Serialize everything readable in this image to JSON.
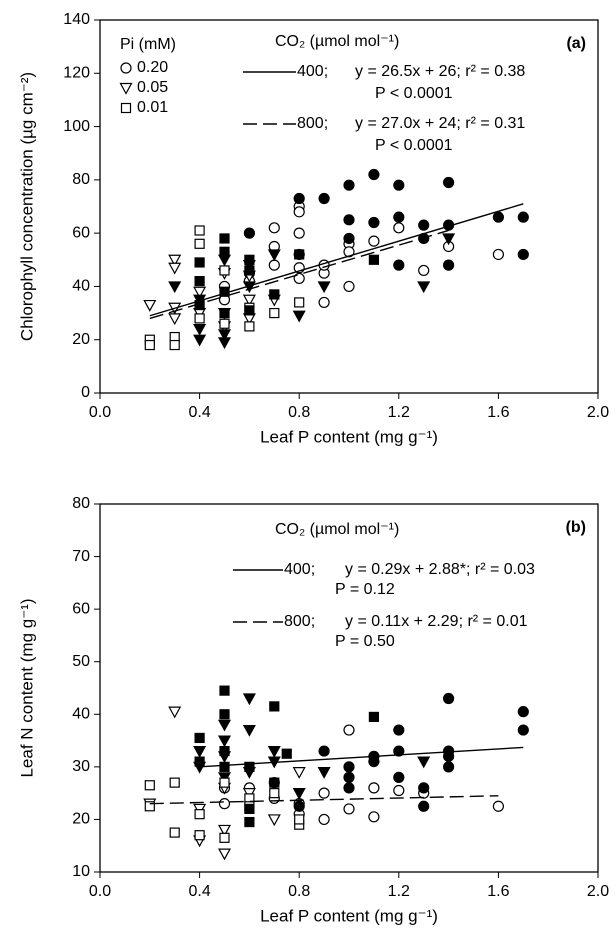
{
  "chart_data": [
    {
      "type": "scatter",
      "panel_label": "(a)",
      "y_label": "Chlorophyll concentration (µg cm⁻²)",
      "x_label": "Leaf P content (mg g⁻¹)",
      "xlim": [
        0,
        2
      ],
      "xticks": [
        {
          "value": 0,
          "label": "0.0"
        },
        0.4,
        0.8,
        1.2,
        1.6,
        {
          "value": 2,
          "label": "2.0"
        }
      ],
      "ylim": [
        0,
        140
      ],
      "yticks": [
        0,
        20,
        40,
        60,
        80,
        100,
        120,
        140
      ],
      "legend_title": "Pi (mM)",
      "fit_legend_title": "CO₂ (µmol mol⁻¹)",
      "series": [
        {
          "name": "0.20",
          "marker": "circle",
          "filled": false,
          "color": "#000000",
          "x": [
            0.5,
            0.5,
            0.6,
            0.6,
            0.7,
            0.7,
            0.8,
            0.8,
            0.8,
            0.8,
            0.8,
            0.8,
            0.9,
            0.9,
            0.9,
            1.0,
            1.0,
            1.0,
            1.1,
            1.2,
            1.3,
            1.4,
            1.6,
            0.7
          ],
          "values": [
            40,
            35,
            45,
            42,
            48,
            55,
            70,
            68,
            60,
            52,
            47,
            43,
            34,
            45,
            48,
            40,
            56,
            53,
            57,
            62,
            46,
            55,
            52,
            62
          ]
        },
        {
          "marker": "circle",
          "filled": true,
          "color": "#000000",
          "x": [
            0.8,
            0.9,
            1.0,
            1.1,
            1.2,
            1.4,
            1.0,
            1.1,
            1.2,
            1.3,
            1.4,
            1.6,
            1.7,
            1.7,
            1.4,
            1.2,
            1.3,
            0.6,
            1.0
          ],
          "values": [
            73,
            73,
            78,
            82,
            78,
            79,
            65,
            64,
            66,
            63,
            63,
            66,
            66,
            52,
            48,
            48,
            58,
            60,
            58
          ]
        },
        {
          "name": "0.05",
          "marker": "triangle",
          "filled": false,
          "color": "#000000",
          "x": [
            0.2,
            0.3,
            0.3,
            0.3,
            0.3,
            0.4,
            0.4,
            0.5,
            0.5,
            0.5,
            0.6,
            0.6,
            0.7,
            0.6
          ],
          "values": [
            33,
            50,
            47,
            28,
            32,
            38,
            30,
            45,
            30,
            25,
            44,
            35,
            35,
            28
          ]
        },
        {
          "marker": "triangle",
          "filled": true,
          "color": "#000000",
          "x": [
            0.3,
            0.4,
            0.4,
            0.4,
            0.5,
            0.5,
            0.5,
            0.6,
            0.6,
            0.7,
            0.8,
            0.9,
            1.3,
            1.4
          ],
          "values": [
            40,
            20,
            24,
            35,
            19,
            22,
            50,
            48,
            40,
            52,
            29,
            40,
            40,
            58
          ]
        },
        {
          "name": "0.01",
          "marker": "square",
          "filled": false,
          "color": "#000000",
          "x": [
            0.2,
            0.2,
            0.3,
            0.3,
            0.4,
            0.4,
            0.5,
            0.5,
            0.6,
            0.6,
            0.7,
            0.8,
            0.4
          ],
          "values": [
            20,
            18,
            21,
            18,
            61,
            56,
            46,
            26,
            25,
            32,
            30,
            34,
            28
          ]
        },
        {
          "marker": "square",
          "filled": true,
          "color": "#000000",
          "x": [
            0.4,
            0.4,
            0.4,
            0.5,
            0.5,
            0.5,
            0.5,
            0.6,
            0.6,
            0.7,
            0.8,
            1.1,
            0.6
          ],
          "values": [
            49,
            42,
            33,
            58,
            53,
            38,
            30,
            50,
            31,
            37,
            52,
            50,
            46
          ]
        }
      ],
      "fits": [
        {
          "label": "400;",
          "equation": "y = 26.5x + 26; r² = 0.38",
          "p_value": "P < 0.0001",
          "dash": false,
          "x": [
            0.2,
            1.7
          ],
          "values": [
            29,
            71
          ]
        },
        {
          "label": "800;",
          "equation": "y = 27.0x + 24; r² = 0.31",
          "p_value": "P < 0.0001",
          "dash": true,
          "x": [
            0.2,
            1.4
          ],
          "values": [
            28,
            61
          ]
        }
      ]
    },
    {
      "type": "scatter",
      "panel_label": "(b)",
      "y_label": "Leaf N content (mg g⁻¹)",
      "x_label": "Leaf P content (mg g⁻¹)",
      "xlim": [
        0,
        2
      ],
      "xticks": [
        {
          "value": 0,
          "label": "0.0"
        },
        0.4,
        0.8,
        1.2,
        1.6,
        {
          "value": 2,
          "label": "2.0"
        }
      ],
      "ylim": [
        10,
        80
      ],
      "yticks": [
        10,
        20,
        30,
        40,
        50,
        60,
        70,
        80
      ],
      "fit_legend_title": "CO₂ (µmol mol⁻¹)",
      "series": [
        {
          "marker": "circle",
          "filled": false,
          "color": "#000000",
          "x": [
            0.5,
            0.6,
            0.7,
            0.8,
            0.8,
            0.9,
            0.9,
            1.0,
            1.0,
            1.1,
            1.1,
            1.2,
            1.3,
            1.6,
            0.7,
            0.5
          ],
          "values": [
            26,
            26,
            24,
            21,
            23,
            20,
            25,
            37,
            22,
            20.5,
            26,
            25.5,
            25,
            22.5,
            27,
            23
          ]
        },
        {
          "marker": "circle",
          "filled": true,
          "color": "#000000",
          "x": [
            0.9,
            1.0,
            1.0,
            1.0,
            1.1,
            1.1,
            1.2,
            1.2,
            1.2,
            1.3,
            1.3,
            1.4,
            1.4,
            1.4,
            1.4,
            1.7,
            1.7,
            0.8
          ],
          "values": [
            33,
            30,
            28,
            26,
            32,
            31,
            37,
            33,
            28,
            22.5,
            26,
            43,
            33,
            32,
            30,
            40.5,
            37,
            22.5
          ]
        },
        {
          "marker": "triangle",
          "filled": false,
          "color": "#000000",
          "x": [
            0.3,
            0.2,
            0.4,
            0.5,
            0.5,
            0.5,
            0.6,
            0.7,
            0.8,
            0.4
          ],
          "values": [
            40.5,
            23,
            16,
            13.5,
            18,
            26,
            25,
            20,
            29,
            22
          ]
        },
        {
          "marker": "triangle",
          "filled": true,
          "color": "#000000",
          "x": [
            0.4,
            0.4,
            0.5,
            0.5,
            0.5,
            0.6,
            0.6,
            0.6,
            0.7,
            0.7,
            0.8,
            0.9,
            1.3,
            0.5
          ],
          "values": [
            33,
            30,
            38,
            35,
            32,
            43,
            37,
            29,
            33,
            31,
            25,
            29,
            31,
            28
          ]
        },
        {
          "marker": "square",
          "filled": false,
          "color": "#000000",
          "x": [
            0.2,
            0.2,
            0.3,
            0.3,
            0.4,
            0.4,
            0.5,
            0.5,
            0.6,
            0.6,
            0.7,
            0.8,
            0.8
          ],
          "values": [
            26.5,
            22.5,
            27,
            17.5,
            17,
            21,
            16.5,
            27,
            24,
            22.5,
            25,
            19,
            20
          ]
        },
        {
          "marker": "square",
          "filled": true,
          "color": "#000000",
          "x": [
            0.4,
            0.4,
            0.5,
            0.5,
            0.5,
            0.5,
            0.6,
            0.6,
            0.7,
            0.7,
            0.75,
            1.1,
            0.6
          ],
          "values": [
            35.5,
            31,
            44.5,
            40,
            33,
            30,
            30,
            19.5,
            41.5,
            27,
            32.5,
            39.5,
            22
          ]
        }
      ],
      "fits": [
        {
          "label": "400;",
          "equation": "y = 0.29x + 2.88*; r² = 0.03",
          "p_value": "P = 0.12",
          "dash": false,
          "x": [
            0.4,
            1.7
          ],
          "values": [
            30,
            33.7
          ]
        },
        {
          "label": "800;",
          "equation": "y = 0.11x + 2.29; r² = 0.01",
          "p_value": "P = 0.50",
          "dash": true,
          "x": [
            0.2,
            1.6
          ],
          "values": [
            23,
            24.5
          ]
        }
      ]
    }
  ]
}
